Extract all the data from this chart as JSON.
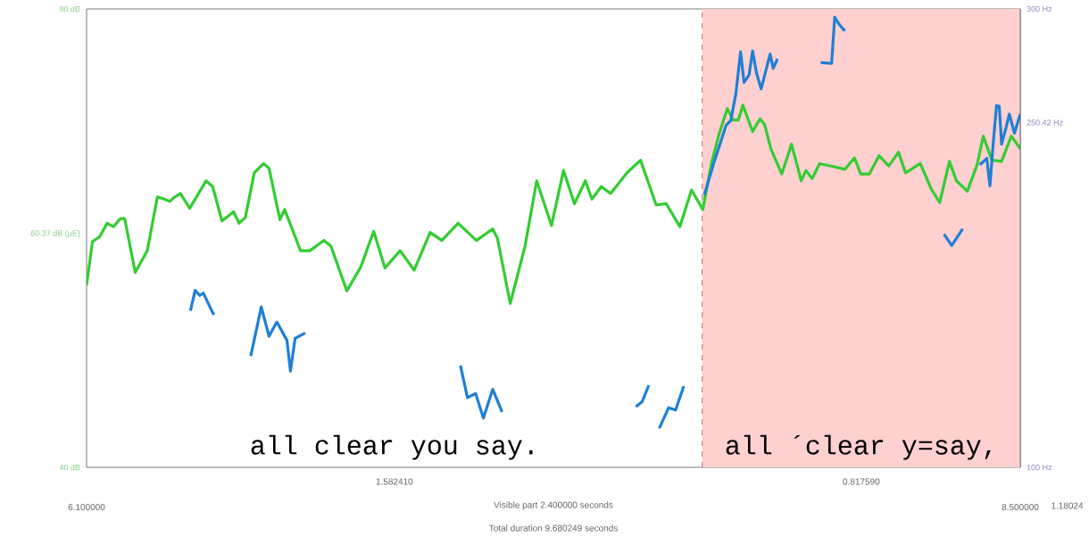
{
  "chart_data": {
    "type": "line",
    "xlim": [
      6.1,
      8.5
    ],
    "xticks": [
      {
        "value": 6.1,
        "label": "6.100000"
      },
      {
        "value": 8.5,
        "label": "8.500000"
      }
    ],
    "ylim": [
      40,
      80
    ],
    "yticks": [
      {
        "value": 40,
        "label": "40 dB"
      },
      {
        "value": 60.37,
        "label": "60.37 dB (μE)"
      },
      {
        "value": 80,
        "label": "80 dB"
      }
    ],
    "y2lim": [
      100,
      300
    ],
    "y2ticks": [
      {
        "value": 100,
        "label": "100 Hz"
      },
      {
        "value": 250.42,
        "label": "250.42 Hz"
      },
      {
        "value": 300,
        "label": "300 Hz"
      }
    ],
    "bands": [
      {
        "axis": "x",
        "from": 7.68241,
        "to": 8.5,
        "color": "#ffd0d0"
      }
    ],
    "ref_lines": [
      {
        "axis": "x",
        "value": 7.68241,
        "color": "#c07070",
        "line_style": "dashed"
      }
    ],
    "series": [
      {
        "color": "#33cc33",
        "x": [
          6.1,
          6.115,
          6.133,
          6.153,
          6.169,
          6.187,
          6.198,
          6.225,
          6.256,
          6.282,
          6.3,
          6.314,
          6.323,
          6.341,
          6.365,
          6.407,
          6.424,
          6.448,
          6.478,
          6.492,
          6.508,
          6.531,
          6.555,
          6.569,
          6.597,
          6.609,
          6.65,
          6.674,
          6.71,
          6.728,
          6.769,
          6.805,
          6.838,
          6.867,
          6.906,
          6.942,
          6.983,
          7.013,
          7.055,
          7.102,
          7.144,
          7.156,
          7.189,
          7.227,
          7.257,
          7.295,
          7.326,
          7.354,
          7.382,
          7.399,
          7.423,
          7.447,
          7.489,
          7.524,
          7.564,
          7.59,
          7.625,
          7.655,
          7.684,
          7.706,
          7.725,
          7.747,
          7.762,
          7.775,
          7.787,
          7.812,
          7.831,
          7.843,
          7.859,
          7.887,
          7.912,
          7.937,
          7.949,
          7.965,
          7.984,
          8.012,
          8.049,
          8.074,
          8.09,
          8.112,
          8.137,
          8.162,
          8.187,
          8.205,
          8.243,
          8.271,
          8.293,
          8.318,
          8.336,
          8.364,
          8.389,
          8.405,
          8.427,
          8.452,
          8.477,
          8.5
        ],
        "values": [
          55.9,
          59.7,
          60.1,
          61.3,
          61.0,
          61.7,
          61.7,
          57.0,
          58.9,
          63.6,
          63.4,
          63.2,
          63.5,
          63.9,
          62.6,
          65.0,
          64.5,
          61.5,
          62.3,
          61.3,
          61.8,
          65.7,
          66.5,
          66.1,
          61.6,
          62.5,
          58.9,
          58.9,
          59.8,
          59.3,
          55.4,
          57.5,
          60.6,
          57.4,
          58.9,
          57.2,
          60.5,
          59.8,
          61.3,
          59.8,
          60.8,
          60.0,
          54.3,
          59.3,
          65.0,
          61.1,
          65.9,
          63.0,
          65.0,
          63.4,
          64.5,
          63.9,
          65.7,
          66.8,
          62.9,
          63.0,
          61.0,
          64.2,
          62.5,
          66.5,
          69.0,
          71.3,
          70.3,
          70.3,
          71.6,
          69.3,
          70.4,
          69.9,
          67.8,
          65.6,
          68.2,
          65.0,
          65.9,
          65.2,
          66.5,
          66.3,
          66.0,
          67.0,
          65.6,
          65.6,
          67.2,
          66.3,
          67.5,
          65.7,
          66.5,
          64.3,
          63.1,
          66.7,
          65.0,
          64.1,
          66.4,
          68.9,
          66.8,
          66.7,
          68.9,
          67.8
        ]
      },
      {
        "color": "#1e7fd6",
        "axis": "y2",
        "x": [
          6.367,
          6.379,
          6.391,
          6.4,
          6.427,
          6.47,
          6.522,
          6.549,
          6.569,
          6.589,
          6.615,
          6.624,
          6.636,
          6.662,
          6.86,
          7.061,
          7.079,
          7.1,
          7.12,
          7.144,
          7.168,
          7.34,
          7.512,
          7.528,
          7.545,
          7.56,
          7.572,
          7.596,
          7.614,
          7.635,
          7.66,
          7.688,
          7.712,
          7.744,
          7.756,
          7.769,
          7.781,
          7.79,
          7.803,
          7.812,
          7.822,
          7.834,
          7.848,
          7.857,
          7.865,
          7.876,
          7.93,
          7.987,
          8.015,
          8.023,
          8.034,
          8.049,
          8.18,
          8.304,
          8.324,
          8.352,
          8.37,
          8.396,
          8.414,
          8.422,
          8.431,
          8.439,
          8.446,
          8.452,
          8.463,
          8.472,
          8.485,
          8.5
        ],
        "values": [
          168.3,
          177.2,
          175.0,
          176.0,
          166.5,
          null,
          148.6,
          170.0,
          157.2,
          163.4,
          155.4,
          142.0,
          156.3,
          158.6,
          null,
          144.4,
          130.4,
          132.2,
          121.5,
          134.0,
          124.2,
          null,
          126.5,
          128.6,
          135.8,
          null,
          117.0,
          126.0,
          125.0,
          135.4,
          null,
          218.9,
          232.7,
          249.3,
          251.3,
          263.1,
          281.3,
          267.9,
          271.3,
          281.7,
          272.0,
          265.1,
          274.4,
          280.3,
          274.1,
          278.2,
          null,
          276.6,
          276.2,
          296.4,
          293.4,
          290.4,
          null,
          201.7,
          196.8,
          204.0,
          null,
          232.0,
          234.8,
          222.8,
          242.4,
          257.8,
          257.6,
          241.0,
          247.9,
          254.1,
          245.8,
          254.1
        ]
      }
    ],
    "annotations": [
      "all clear you   say.",
      "all ´clear y=say,",
      "1.582410",
      "0.817590",
      "Visible part 2.400000 seconds",
      "1.18024",
      "Total duration 9.680249 seconds"
    ]
  }
}
